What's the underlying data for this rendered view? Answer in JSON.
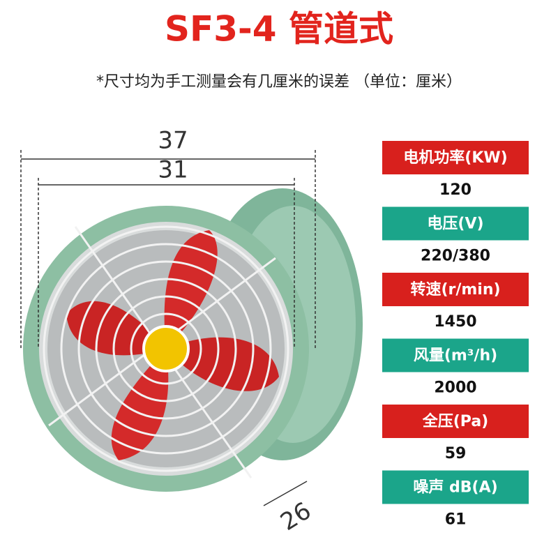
{
  "title": "SF3-4 管道式",
  "note": "*尺寸均为手工测量会有几厘米的误差 （单位：厘米）",
  "dimensions": {
    "outer": "37",
    "inner": "31",
    "depth": "26"
  },
  "specs": [
    {
      "label": "电机功率(KW)",
      "value": "120"
    },
    {
      "label": "电压(V)",
      "value": "220/380"
    },
    {
      "label": "转速(r/min)",
      "value": "1450"
    },
    {
      "label": "风量(m³/h)",
      "value": "2000"
    },
    {
      "label": "全压(Pa)",
      "value": "59"
    },
    {
      "label": "噪声 dB(A)",
      "value": "61"
    }
  ]
}
